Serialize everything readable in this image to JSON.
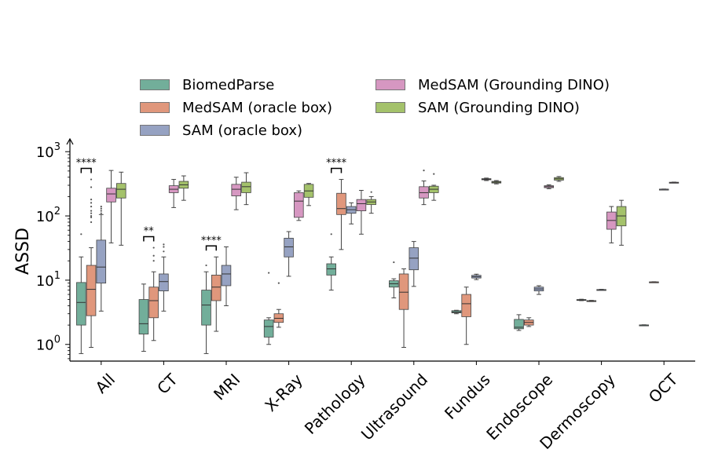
{
  "chart_data": {
    "type": "box",
    "ylabel": "ASSD",
    "yscale": "log",
    "ylim": [
      0.55,
      1450
    ],
    "yticks": [
      {
        "value": 1,
        "base": "10",
        "exp": "0"
      },
      {
        "value": 10,
        "base": "10",
        "exp": "1"
      },
      {
        "value": 100,
        "base": "10",
        "exp": "2"
      },
      {
        "value": 1000,
        "base": "10",
        "exp": "3"
      }
    ],
    "categories": [
      "All",
      "CT",
      "MRI",
      "X-Ray",
      "Pathology",
      "Ultrasound",
      "Fundus",
      "Endoscope",
      "Dermoscopy",
      "OCT"
    ],
    "series": [
      {
        "name": "BiomedParse",
        "color": "#72ae9a",
        "boxes": [
          {
            "whislo": 0.72,
            "q1": 2.0,
            "med": 4.5,
            "q3": 9.2,
            "whishi": 23,
            "fliers": [
              52
            ]
          },
          {
            "whislo": 0.78,
            "q1": 1.45,
            "med": 2.1,
            "q3": 5.0,
            "whishi": 8.7,
            "fliers": []
          },
          {
            "whislo": 0.72,
            "q1": 2.0,
            "med": 4.1,
            "q3": 7.0,
            "whishi": 13.5,
            "fliers": [
              17
            ]
          },
          {
            "whislo": 1.0,
            "q1": 1.3,
            "med": 1.9,
            "q3": 2.4,
            "whishi": 2.6,
            "fliers": [
              13
            ]
          },
          {
            "whislo": 7.0,
            "q1": 12,
            "med": 15,
            "q3": 18,
            "whishi": 23,
            "fliers": [
              52
            ]
          },
          {
            "whislo": 5.3,
            "q1": 7.8,
            "med": 8.8,
            "q3": 9.8,
            "whishi": 10.5,
            "fliers": [
              19
            ]
          },
          {
            "whislo": 3.0,
            "q1": 3.1,
            "med": 3.2,
            "q3": 3.35,
            "whishi": 3.4,
            "fliers": []
          },
          {
            "whislo": 1.65,
            "q1": 1.75,
            "med": 1.85,
            "q3": 2.45,
            "whishi": 2.9,
            "fliers": []
          },
          {
            "whislo": 4.8,
            "q1": 4.85,
            "med": 4.9,
            "q3": 5.0,
            "whishi": 5.05,
            "fliers": []
          },
          {
            "whislo": 1.98,
            "q1": 1.99,
            "med": 2.0,
            "q3": 2.01,
            "whishi": 2.02,
            "fliers": []
          }
        ]
      },
      {
        "name": "MedSAM (oracle box)",
        "color": "#e0977c",
        "boxes": [
          {
            "whislo": 0.9,
            "q1": 2.8,
            "med": 7.2,
            "q3": 17,
            "whishi": 32,
            "fliers": [
              80,
              95,
              100,
              110,
              120,
              140,
              160,
              180,
              280,
              370
            ]
          },
          {
            "whislo": 1.15,
            "q1": 2.6,
            "med": 4.8,
            "q3": 7.8,
            "whishi": 13.5,
            "fliers": [
              20,
              24,
              32
            ]
          },
          {
            "whislo": 1.6,
            "q1": 4.8,
            "med": 7.8,
            "q3": 12,
            "whishi": 23,
            "fliers": []
          },
          {
            "whislo": 1.85,
            "q1": 2.2,
            "med": 2.55,
            "q3": 3.0,
            "whishi": 3.5,
            "fliers": [
              9
            ]
          },
          {
            "whislo": 30,
            "q1": 105,
            "med": 130,
            "q3": 225,
            "whishi": 370,
            "fliers": []
          },
          {
            "whislo": 0.9,
            "q1": 3.5,
            "med": 6.5,
            "q3": 12.5,
            "whishi": 15,
            "fliers": []
          },
          {
            "whislo": 1.0,
            "q1": 2.7,
            "med": 4.3,
            "q3": 6.0,
            "whishi": 7.8,
            "fliers": []
          },
          {
            "whislo": 1.9,
            "q1": 2.0,
            "med": 2.2,
            "q3": 2.4,
            "whishi": 2.6,
            "fliers": []
          },
          {
            "whislo": 4.65,
            "q1": 4.7,
            "med": 4.75,
            "q3": 4.8,
            "whishi": 4.85,
            "fliers": []
          },
          {
            "whislo": 9.25,
            "q1": 9.3,
            "med": 9.35,
            "q3": 9.4,
            "whishi": 9.45,
            "fliers": []
          }
        ]
      },
      {
        "name": "SAM (oracle box)",
        "color": "#96a2c2",
        "boxes": [
          {
            "whislo": 3.3,
            "q1": 9.0,
            "med": 16,
            "q3": 42,
            "whishi": 105,
            "fliers": [
              110,
              120,
              130,
              140
            ]
          },
          {
            "whislo": 3.3,
            "q1": 6.8,
            "med": 9.5,
            "q3": 12.5,
            "whishi": 23,
            "fliers": [
              28,
              33,
              36
            ]
          },
          {
            "whislo": 4.0,
            "q1": 8.2,
            "med": 12.5,
            "q3": 17,
            "whishi": 33,
            "fliers": []
          },
          {
            "whislo": 11.5,
            "q1": 23,
            "med": 33,
            "q3": 45,
            "whishi": 57,
            "fliers": []
          },
          {
            "whislo": 75,
            "q1": 110,
            "med": 125,
            "q3": 140,
            "whishi": 160,
            "fliers": []
          },
          {
            "whislo": 8.0,
            "q1": 14.5,
            "med": 22,
            "q3": 32,
            "whishi": 40,
            "fliers": []
          },
          {
            "whislo": 10.2,
            "q1": 10.8,
            "med": 11.3,
            "q3": 11.9,
            "whishi": 12.4,
            "fliers": []
          },
          {
            "whislo": 6.0,
            "q1": 6.8,
            "med": 7.3,
            "q3": 7.8,
            "whishi": 8.2,
            "fliers": []
          },
          {
            "whislo": 7.0,
            "q1": 7.05,
            "med": 7.1,
            "q3": 7.15,
            "whishi": 7.2,
            "fliers": []
          },
          {
            "whislo": 258,
            "q1": 259,
            "med": 260,
            "q3": 261,
            "whishi": 262,
            "fliers": []
          }
        ]
      },
      {
        "name": "MedSAM (Grounding DINO)",
        "color": "#d697c1",
        "boxes": [
          {
            "whislo": 38,
            "q1": 165,
            "med": 220,
            "q3": 270,
            "whishi": 510,
            "fliers": []
          },
          {
            "whislo": 135,
            "q1": 230,
            "med": 260,
            "q3": 295,
            "whishi": 370,
            "fliers": []
          },
          {
            "whislo": 125,
            "q1": 205,
            "med": 260,
            "q3": 310,
            "whishi": 400,
            "fliers": []
          },
          {
            "whislo": 85,
            "q1": 95,
            "med": 170,
            "q3": 230,
            "whishi": 245,
            "fliers": []
          },
          {
            "whislo": 52,
            "q1": 120,
            "med": 155,
            "q3": 180,
            "whishi": 250,
            "fliers": []
          },
          {
            "whislo": 150,
            "q1": 190,
            "med": 230,
            "q3": 285,
            "whishi": 350,
            "fliers": [
              510
            ]
          },
          {
            "whislo": 355,
            "q1": 365,
            "med": 372,
            "q3": 380,
            "whishi": 388,
            "fliers": []
          },
          {
            "whislo": 265,
            "q1": 275,
            "med": 285,
            "q3": 295,
            "whishi": 305,
            "fliers": []
          },
          {
            "whislo": 38,
            "q1": 62,
            "med": 85,
            "q3": 115,
            "whishi": 140,
            "fliers": []
          },
          {
            "whislo": 328,
            "q1": 330,
            "med": 332,
            "q3": 334,
            "whishi": 336,
            "fliers": []
          }
        ]
      },
      {
        "name": "SAM (Grounding DINO)",
        "color": "#a4c26b",
        "boxes": [
          {
            "whislo": 35,
            "q1": 190,
            "med": 260,
            "q3": 320,
            "whishi": 480,
            "fliers": []
          },
          {
            "whislo": 175,
            "q1": 270,
            "med": 305,
            "q3": 345,
            "whishi": 420,
            "fliers": []
          },
          {
            "whislo": 150,
            "q1": 230,
            "med": 285,
            "q3": 335,
            "whishi": 470,
            "fliers": []
          },
          {
            "whislo": 145,
            "q1": 195,
            "med": 245,
            "q3": 310,
            "whishi": 320,
            "fliers": []
          },
          {
            "whislo": 110,
            "q1": 150,
            "med": 165,
            "q3": 180,
            "whishi": 200,
            "fliers": [
              235
            ]
          },
          {
            "whislo": 175,
            "q1": 230,
            "med": 260,
            "q3": 290,
            "whishi": 300,
            "fliers": [
              450
            ]
          },
          {
            "whislo": 315,
            "q1": 325,
            "med": 335,
            "q3": 345,
            "whishi": 355,
            "fliers": []
          },
          {
            "whislo": 345,
            "q1": 360,
            "med": 378,
            "q3": 395,
            "whishi": 410,
            "fliers": []
          },
          {
            "whislo": 35,
            "q1": 70,
            "med": 100,
            "q3": 140,
            "whishi": 175,
            "fliers": []
          },
          null
        ]
      }
    ],
    "significance": [
      {
        "category": "All",
        "label": "****"
      },
      {
        "category": "CT",
        "label": "**"
      },
      {
        "category": "MRI",
        "label": "****"
      },
      {
        "category": "Pathology",
        "label": "****"
      }
    ],
    "legend_position": "upper-center"
  }
}
